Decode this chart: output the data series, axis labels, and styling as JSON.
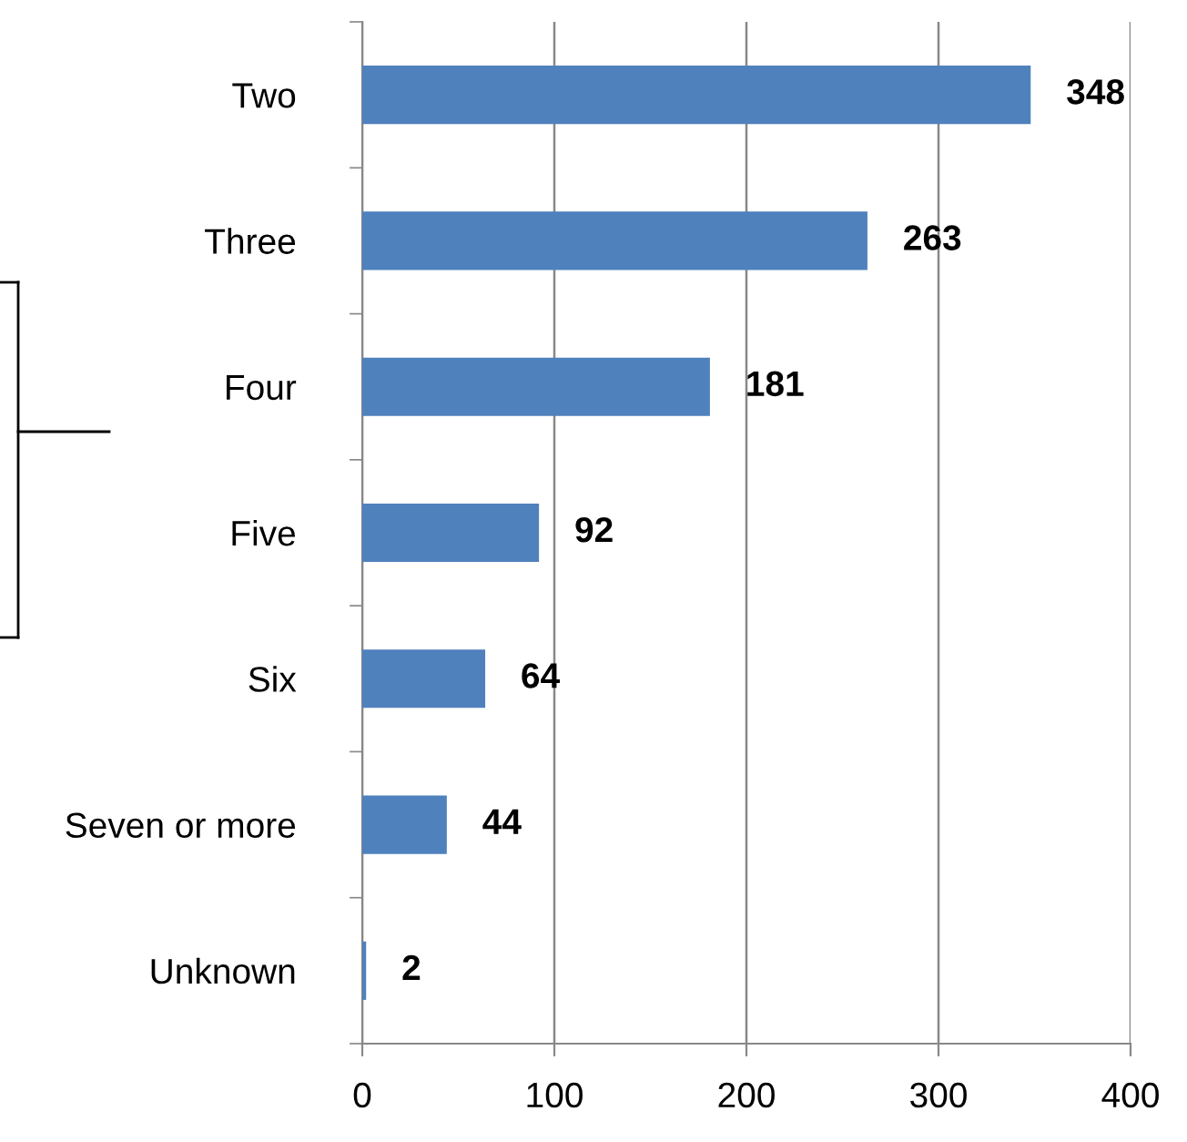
{
  "chart_data": {
    "type": "bar",
    "orientation": "horizontal",
    "categories": [
      "Two",
      "Three",
      "Four",
      "Five",
      "Six",
      "Seven or more",
      "Unknown"
    ],
    "values": [
      348,
      263,
      181,
      92,
      64,
      44,
      2
    ],
    "color": "#4f81bd",
    "xlim": [
      0,
      400
    ],
    "xticks": [
      0,
      100,
      200,
      300,
      400
    ],
    "grid": "x",
    "data_labels": true,
    "legend": false
  }
}
